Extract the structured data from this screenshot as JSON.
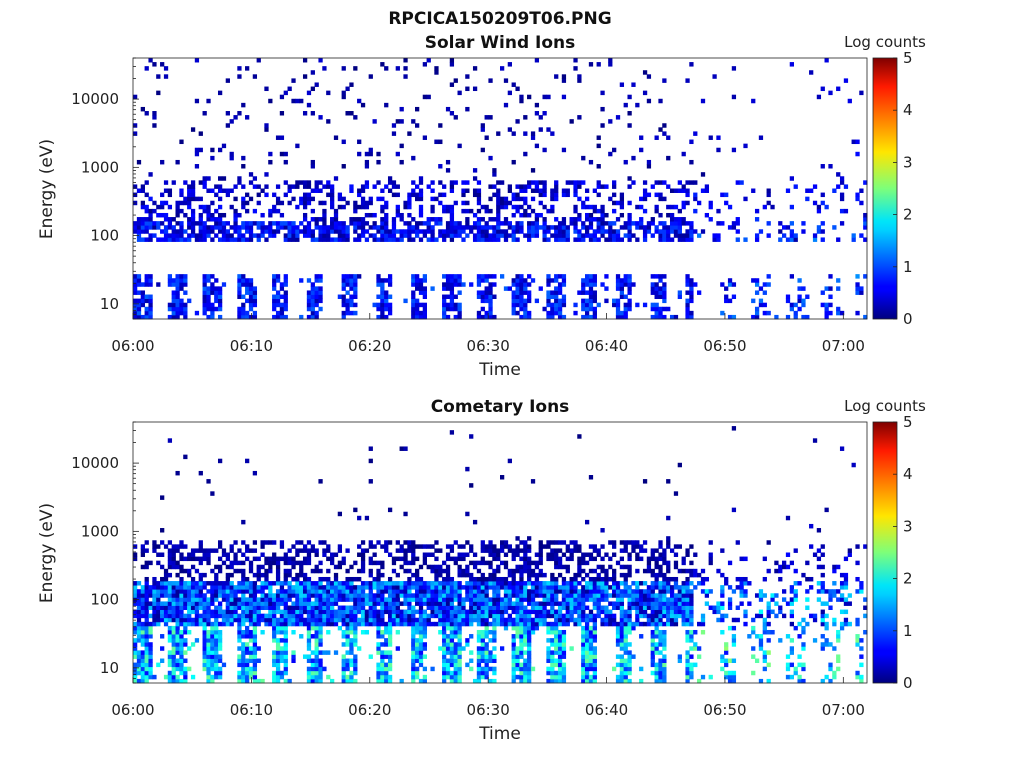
{
  "figure_title": "RPCICA150209T06.PNG",
  "chart_data": [
    {
      "type": "heatmap",
      "title": "Solar Wind Ions",
      "xlabel": "Time",
      "ylabel": "Energy (eV)",
      "x_range": [
        "06:00",
        "07:02"
      ],
      "x_ticks": [
        "06:00",
        "06:10",
        "06:20",
        "06:30",
        "06:40",
        "06:50",
        "07:00"
      ],
      "y_scale": "log",
      "y_range": [
        6,
        40000
      ],
      "y_ticks": [
        10,
        100,
        1000,
        10000
      ],
      "y_tick_labels": [
        "10",
        "100",
        "1000",
        "10000"
      ],
      "colorbar": {
        "label": "Log counts",
        "range": [
          0,
          5
        ],
        "ticks": [
          "0",
          "1",
          "2",
          "3",
          "4",
          "5"
        ],
        "colormap": "jet"
      },
      "bands": [
        {
          "e_min": 6,
          "e_max": 28,
          "density": 0.75,
          "lvl": [
            0.2,
            1.1
          ],
          "burst_gaps": true
        },
        {
          "e_min": 85,
          "e_max": 160,
          "density": 0.72,
          "lvl": [
            0.1,
            1.0
          ]
        },
        {
          "e_min": 150,
          "e_max": 650,
          "density": 0.35,
          "lvl": [
            0.05,
            0.7
          ]
        },
        {
          "e_min": 650,
          "e_max": 40000,
          "density": 0.06,
          "lvl": [
            0.0,
            0.4
          ]
        }
      ],
      "activity_fade_after": "06:47",
      "seed": 11
    },
    {
      "type": "heatmap",
      "title": "Cometary Ions",
      "xlabel": "Time",
      "ylabel": "Energy (eV)",
      "x_range": [
        "06:00",
        "07:02"
      ],
      "x_ticks": [
        "06:00",
        "06:10",
        "06:20",
        "06:30",
        "06:40",
        "06:50",
        "07:00"
      ],
      "y_scale": "log",
      "y_range": [
        6,
        40000
      ],
      "y_ticks": [
        10,
        100,
        1000,
        10000
      ],
      "y_tick_labels": [
        "10",
        "100",
        "1000",
        "10000"
      ],
      "colorbar": {
        "label": "Log counts",
        "range": [
          0,
          5
        ],
        "ticks": [
          "0",
          "1",
          "2",
          "3",
          "4",
          "5"
        ],
        "colormap": "jet"
      },
      "bands": [
        {
          "e_min": 6,
          "e_max": 40,
          "density": 0.85,
          "lvl": [
            0.6,
            2.4
          ],
          "burst_gaps": true
        },
        {
          "e_min": 40,
          "e_max": 180,
          "density": 0.9,
          "lvl": [
            0.1,
            1.7
          ]
        },
        {
          "e_min": 180,
          "e_max": 700,
          "density": 0.45,
          "lvl": [
            0.0,
            0.4
          ]
        },
        {
          "e_min": 700,
          "e_max": 40000,
          "density": 0.012,
          "lvl": [
            0.0,
            0.3
          ]
        }
      ],
      "activity_fade_after": "06:47",
      "seed": 29
    }
  ]
}
